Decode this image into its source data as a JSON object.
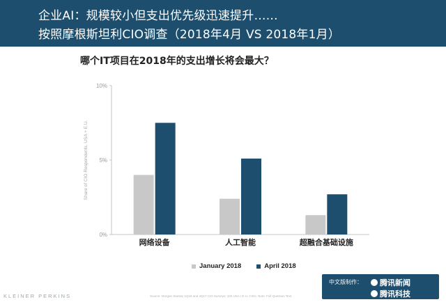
{
  "header": {
    "line1": "企业AI：规模较小但支出优先级迅速提升……",
    "line2": "按照摩根斯坦利CIO调查（2018年4月 VS 2018年1月）"
  },
  "chart_data": {
    "type": "bar",
    "title": "哪个IT项目在2018年的支出增长将会最大？",
    "categories": [
      "网络设备",
      "人工智能",
      "超融合基础设施"
    ],
    "series": [
      {
        "name": "January 2018",
        "values": [
          4.0,
          2.4,
          1.3
        ],
        "color": "#c8c8c8"
      },
      {
        "name": "April 2018",
        "values": [
          7.5,
          5.1,
          2.7
        ],
        "color": "#1d4e6e"
      }
    ],
    "ylabel": "Share of CIO Respondents, USA + E.U.",
    "ylim": [
      0,
      10
    ],
    "yticks": [
      0,
      5,
      10
    ],
    "ytick_labels": [
      "0%",
      "5%",
      "10%"
    ],
    "grid": false,
    "legend_position": "bottom"
  },
  "footer": {
    "brand": "KLEINER PERKINS",
    "source": "Source: Morgan Stanley 1Q18 and 4Q17 CIO Surveys; 100 USA / E.U. CIOs. Note: Full Question Text",
    "watermark_label": "中文版制作：",
    "watermark_brand1": "腾讯新闻",
    "watermark_brand2": "腾讯科技"
  }
}
